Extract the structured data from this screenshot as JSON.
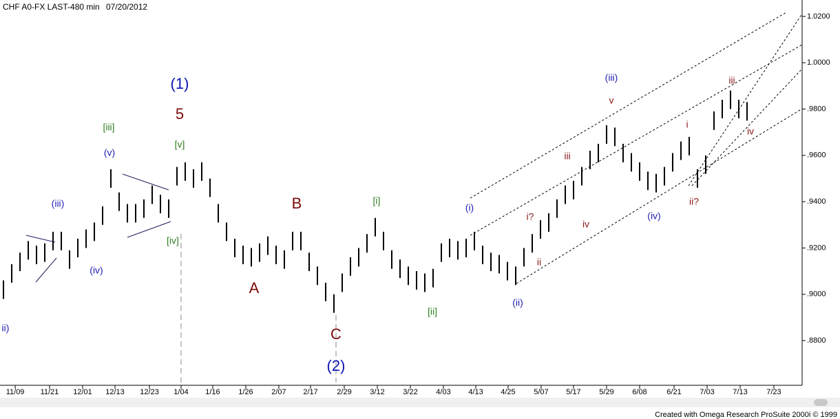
{
  "chart_data": {
    "type": "range_bar",
    "title": "CHF A0-FX LAST-480 min",
    "date": "07/20/2012",
    "footer": "Created with Omega Research ProSuite 2000i © 1999",
    "color": "#000000",
    "high": [
      0.906,
      0.913,
      0.918,
      0.923,
      0.921,
      0.922,
      0.927,
      0.927,
      0.919,
      0.924,
      0.928,
      0.931,
      0.938,
      0.954,
      0.944,
      0.939,
      0.939,
      0.941,
      0.947,
      0.943,
      0.941,
      0.955,
      0.957,
      0.954,
      0.957,
      0.95,
      0.939,
      0.931,
      0.924,
      0.921,
      0.92,
      0.922,
      0.925,
      0.921,
      0.919,
      0.927,
      0.927,
      0.918,
      0.912,
      0.905,
      0.9,
      0.909,
      0.916,
      0.92,
      0.926,
      0.933,
      0.927,
      0.919,
      0.915,
      0.912,
      0.91,
      0.909,
      0.911,
      0.922,
      0.924,
      0.923,
      0.924,
      0.927,
      0.921,
      0.918,
      0.917,
      0.914,
      0.912,
      0.92,
      0.926,
      0.932,
      0.935,
      0.941,
      0.947,
      0.949,
      0.955,
      0.962,
      0.965,
      0.973,
      0.972,
      0.965,
      0.961,
      0.957,
      0.953,
      0.952,
      0.955,
      0.961,
      0.966,
      0.968,
      0.954,
      0.96,
      0.979,
      0.984,
      0.988,
      0.984,
      0.983
    ],
    "low": [
      0.898,
      0.905,
      0.91,
      0.915,
      0.913,
      0.914,
      0.919,
      0.919,
      0.911,
      0.916,
      0.92,
      0.923,
      0.93,
      0.946,
      0.936,
      0.931,
      0.931,
      0.933,
      0.939,
      0.935,
      0.933,
      0.947,
      0.949,
      0.946,
      0.949,
      0.942,
      0.931,
      0.923,
      0.916,
      0.913,
      0.912,
      0.914,
      0.917,
      0.913,
      0.911,
      0.919,
      0.919,
      0.91,
      0.904,
      0.897,
      0.892,
      0.901,
      0.908,
      0.912,
      0.918,
      0.925,
      0.919,
      0.911,
      0.907,
      0.904,
      0.902,
      0.901,
      0.903,
      0.914,
      0.916,
      0.915,
      0.916,
      0.919,
      0.913,
      0.91,
      0.909,
      0.906,
      0.904,
      0.912,
      0.918,
      0.924,
      0.927,
      0.933,
      0.939,
      0.941,
      0.947,
      0.954,
      0.957,
      0.965,
      0.964,
      0.957,
      0.953,
      0.949,
      0.945,
      0.944,
      0.947,
      0.953,
      0.958,
      0.96,
      0.946,
      0.952,
      0.971,
      0.976,
      0.98,
      0.976,
      0.975
    ],
    "ylim": [
      0.8607,
      1.0271
    ],
    "yticks": [
      {
        "value": 1.02,
        "label": "1.0200"
      },
      {
        "value": 1.0,
        "label": "1.0000"
      },
      {
        "value": 0.98,
        "label": ".9800"
      },
      {
        "value": 0.96,
        "label": ".9600"
      },
      {
        "value": 0.94,
        "label": ".9400"
      },
      {
        "value": 0.92,
        "label": ".9200"
      },
      {
        "value": 0.9,
        "label": ".9000"
      },
      {
        "value": 0.88,
        "label": ".8800"
      }
    ],
    "xlim": [
      -0.42,
      96.67
    ],
    "xticks": [
      {
        "value": 1.42,
        "label": "11/09"
      },
      {
        "value": 5.58,
        "label": "11/21"
      },
      {
        "value": 9.58,
        "label": "12/01"
      },
      {
        "value": 13.5,
        "label": "12/13"
      },
      {
        "value": 17.67,
        "label": "12/23"
      },
      {
        "value": 21.5,
        "label": "1/04"
      },
      {
        "value": 25.33,
        "label": "1/16"
      },
      {
        "value": 29.33,
        "label": "1/26"
      },
      {
        "value": 33.33,
        "label": "2/07"
      },
      {
        "value": 37.17,
        "label": "2/17"
      },
      {
        "value": 41.25,
        "label": "2/29"
      },
      {
        "value": 45.25,
        "label": "3/12"
      },
      {
        "value": 49.25,
        "label": "3/22"
      },
      {
        "value": 53.25,
        "label": "4/03"
      },
      {
        "value": 57.17,
        "label": "4/13"
      },
      {
        "value": 61.08,
        "label": "4/25"
      },
      {
        "value": 65.08,
        "label": "5/07"
      },
      {
        "value": 69,
        "label": "5/17"
      },
      {
        "value": 73,
        "label": "5/29"
      },
      {
        "value": 77,
        "label": "6/08"
      },
      {
        "value": 81.17,
        "label": "6/21"
      },
      {
        "value": 85.17,
        "label": "7/03"
      },
      {
        "value": 89.17,
        "label": "7/13"
      },
      {
        "value": 93.25,
        "label": "7/23"
      }
    ],
    "annotations": [
      {
        "text": "ii)",
        "color": "#1f1fb4"
      },
      {
        "text": "(iii)",
        "color": "#1f1fb4"
      },
      {
        "text": "(iv)",
        "color": "#1f1fb4"
      },
      {
        "text": "(v)",
        "color": "#1f1fb4"
      },
      {
        "text": "[iii]",
        "color": "#2e7d1e"
      },
      {
        "text": "[v]",
        "color": "#2e7d1e"
      },
      {
        "text": "[iv]",
        "color": "#2e7d1e"
      },
      {
        "text": "(1)",
        "color": "#0a14b4"
      },
      {
        "text": "5",
        "color": "#7a0a0a"
      },
      {
        "text": "A",
        "color": "#7a0a0a"
      },
      {
        "text": "B",
        "color": "#7a0a0a"
      },
      {
        "text": "C",
        "color": "#7a0a0a"
      },
      {
        "text": "(2)",
        "color": "#0a14b4"
      },
      {
        "text": "[i]",
        "color": "#2e7d1e"
      },
      {
        "text": "[ii]",
        "color": "#2e7d1e"
      },
      {
        "text": "(i)",
        "color": "#1f1fb4"
      },
      {
        "text": "(ii)",
        "color": "#1f1fb4"
      },
      {
        "text": "i?",
        "color": "#8b1a1a"
      },
      {
        "text": "ii",
        "color": "#8b1a1a"
      },
      {
        "text": "iii",
        "color": "#8b1a1a"
      },
      {
        "text": "iv",
        "color": "#8b1a1a"
      },
      {
        "text": "v",
        "color": "#8b1a1a"
      },
      {
        "text": "(iii)",
        "color": "#1f1fb4"
      },
      {
        "text": "(iv)",
        "color": "#1f1fb4"
      },
      {
        "text": "i",
        "color": "#8b1a1a"
      },
      {
        "text": "ii?",
        "color": "#8b1a1a"
      },
      {
        "text": "iii",
        "color": "#8b1a1a"
      },
      {
        "text": "iv",
        "color": "#8b1a1a"
      }
    ]
  }
}
